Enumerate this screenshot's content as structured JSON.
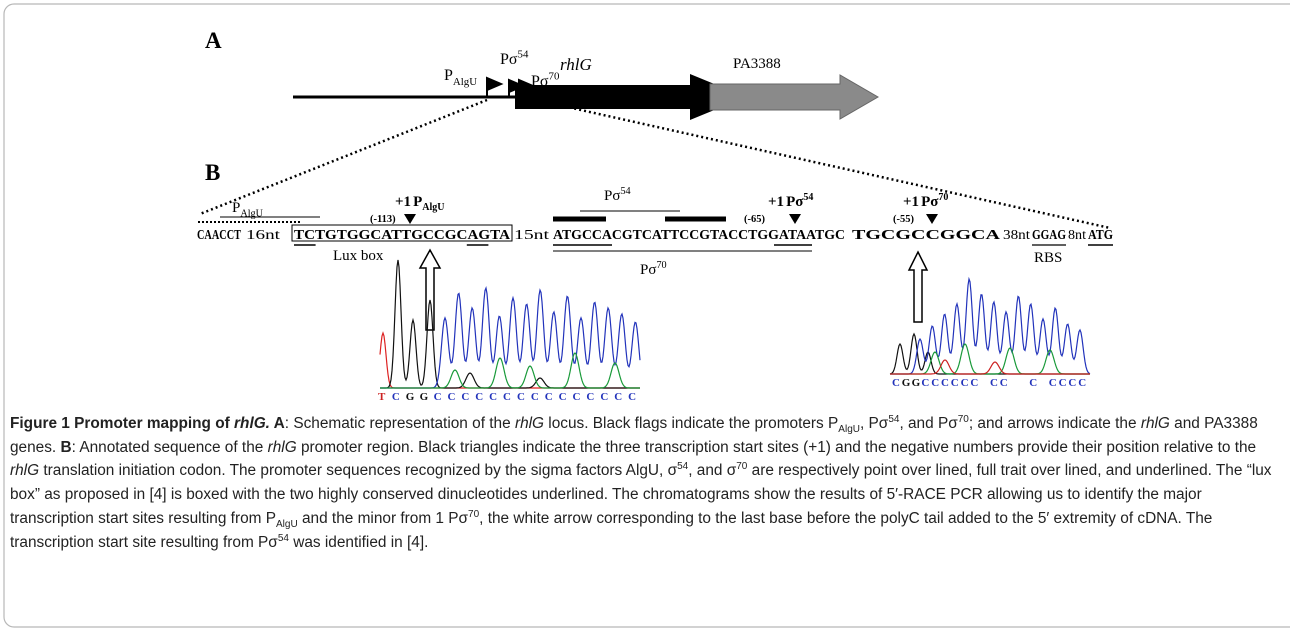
{
  "panel_a": {
    "label": "A",
    "promoters": [
      {
        "base": "P",
        "sub": "AlgU"
      },
      {
        "base": "Pσ",
        "sup": "54"
      },
      {
        "base": "Pσ",
        "sup": "70"
      }
    ],
    "genes": [
      "rhlG",
      "PA3388"
    ]
  },
  "panel_b": {
    "label": "B",
    "algu_label": {
      "base": "P",
      "sub": "AlgU"
    },
    "sigma_labels": [
      {
        "base": "Pσ",
        "sup": "54"
      },
      {
        "base": "Pσ",
        "sup": "70"
      }
    ],
    "sequence": [
      "CAACCT",
      "16nt",
      "TCTGTGGCATTGCCGCAGTA",
      "15nt",
      "ATGCCACGTCATTCCGTACCTGGATAATGC",
      "TGCGCCGGCA",
      "38nt",
      "GGAG",
      "8nt",
      "ATG"
    ],
    "start_sites": [
      {
        "label": "+1",
        "promoter": {
          "base": "P",
          "sub": "AlgU"
        },
        "position": "(-113)"
      },
      {
        "label": "+1",
        "promoter": {
          "base": "Pσ",
          "sup": "54"
        },
        "position": "(-65)"
      },
      {
        "label": "+1",
        "promoter": {
          "base": "Pσ",
          "sup": "70"
        },
        "position": "(-55)"
      }
    ],
    "lux_box": "Lux box",
    "rbs": "RBS",
    "chromatogram_bases": [
      "TCGGCCCCCCCCCCCCCCC",
      "CGGCCCCCC CC  C CCCC"
    ]
  },
  "caption": [
    {
      "text": "Figure 1 Promoter mapping of ",
      "style": "b"
    },
    {
      "text": "rhlG.",
      "style": "bi"
    },
    {
      "text": " A",
      "style": "b"
    },
    {
      "text": ": Schematic representation of the ",
      "style": ""
    },
    {
      "text": "rhlG",
      "style": "i"
    },
    {
      "text": " locus. Black flags indicate the promoters P",
      "style": ""
    },
    {
      "text": "AlgU",
      "style": "sub"
    },
    {
      "text": ", Pσ",
      "style": ""
    },
    {
      "text": "54",
      "style": "sup"
    },
    {
      "text": ", and Pσ",
      "style": ""
    },
    {
      "text": "70",
      "style": "sup"
    },
    {
      "text": "; and arrows indicate the ",
      "style": ""
    },
    {
      "text": "rhlG",
      "style": "i"
    },
    {
      "text": " and PA3388 genes. ",
      "style": ""
    },
    {
      "text": "B",
      "style": "b"
    },
    {
      "text": ": Annotated sequence of the ",
      "style": ""
    },
    {
      "text": "rhlG",
      "style": "i"
    },
    {
      "text": " promoter region. Black triangles indicate the three transcription start sites (+1) and the negative numbers provide their position relative to the ",
      "style": ""
    },
    {
      "text": "rhlG",
      "style": "i"
    },
    {
      "text": " translation initiation codon. The promoter sequences recognized by the sigma factors AlgU, σ",
      "style": ""
    },
    {
      "text": "54",
      "style": "sup"
    },
    {
      "text": ", and σ",
      "style": ""
    },
    {
      "text": "70",
      "style": "sup"
    },
    {
      "text": " are respectively point over lined, full trait over lined, and underlined. The “lux box” as proposed in [4] is boxed with the two highly conserved dinucleotides underlined. The chromatograms show the results of 5′-RACE PCR allowing us to identify the major transcription start sites resulting from P",
      "style": ""
    },
    {
      "text": "AlgU",
      "style": "sub"
    },
    {
      "text": " and the minor from 1 Pσ",
      "style": ""
    },
    {
      "text": "70",
      "style": "sup"
    },
    {
      "text": ", the white arrow corresponding to the last base before the polyC tail added to the 5′ extremity of cDNA. The transcription start site resulting from Pσ",
      "style": ""
    },
    {
      "text": "54",
      "style": "sup"
    },
    {
      "text": " was identified in [4].",
      "style": ""
    }
  ]
}
